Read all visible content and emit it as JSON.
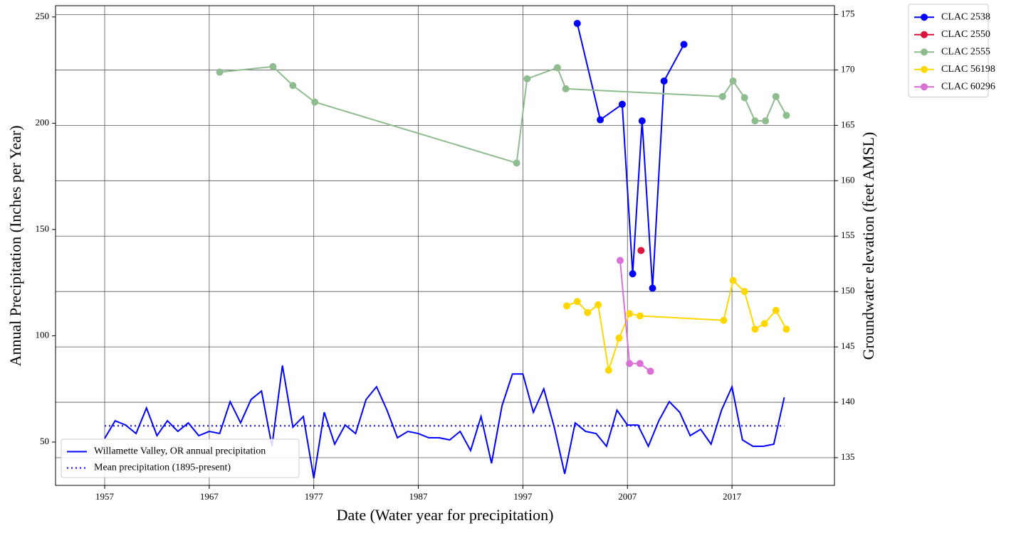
{
  "chart_data": {
    "type": "line",
    "x_label": "Date (Water year for precipitation)",
    "y_label": "Annual Precipitation (Inches per Year)",
    "y2_label": "Groundwater elevation (feet AMSL)",
    "xlim": [
      1952.3,
      2026.8
    ],
    "xticks": [
      1957,
      1967,
      1977,
      1987,
      1997,
      2007,
      2017
    ],
    "ylim": [
      29.6,
      255.3
    ],
    "yticks": [
      50,
      100,
      150,
      200,
      250
    ],
    "y2lim": [
      132.5,
      175.8
    ],
    "y2ticks": [
      135,
      140,
      145,
      150,
      155,
      160,
      165,
      170,
      175
    ],
    "grid": true,
    "legend_loc": "lower left",
    "legend2_loc": "outside upper right",
    "series": [
      {
        "name": "Willamette Valley, OR annual precipitation",
        "color": "#0000ff",
        "style": "solid",
        "axis": "y",
        "x": [
          1957,
          1958,
          1959,
          1960,
          1961,
          1962,
          1963,
          1964,
          1965,
          1966,
          1967,
          1968,
          1969,
          1970,
          1971,
          1972,
          1973,
          1974,
          1975,
          1976,
          1977,
          1978,
          1979,
          1980,
          1981,
          1982,
          1983,
          1984,
          1985,
          1986,
          1987,
          1988,
          1989,
          1990,
          1991,
          1992,
          1993,
          1994,
          1995,
          1996,
          1997,
          1998,
          1999,
          2000,
          2001,
          2002,
          2003,
          2004,
          2005,
          2006,
          2007,
          2008,
          2009,
          2010,
          2011,
          2012,
          2013,
          2014,
          2015,
          2016,
          2017,
          2018,
          2019,
          2020,
          2021,
          2022
        ],
        "values": [
          51.7,
          60,
          58,
          54,
          66,
          53,
          60,
          55,
          59,
          53,
          55,
          54,
          69,
          59,
          70,
          74,
          48,
          86,
          57,
          62,
          33,
          64,
          49,
          58,
          54,
          70,
          76,
          65,
          52,
          55,
          54,
          52,
          52,
          51,
          55,
          46,
          62,
          40,
          67,
          82,
          82,
          64,
          75,
          57,
          35,
          59,
          55,
          54,
          48,
          65,
          58,
          58,
          48,
          60,
          69,
          64,
          53,
          56,
          49,
          65,
          76,
          51,
          48,
          48,
          49,
          71
        ]
      },
      {
        "name": "Mean precipitation (1895-present)",
        "color": "#0000ff",
        "style": "dotted",
        "axis": "y",
        "x": [
          1957,
          2022
        ],
        "values": [
          57.6,
          57.6
        ]
      },
      {
        "name": "CLAC 2538",
        "color": "#0000ff",
        "style": "solid",
        "marker": "o",
        "axis": "y2",
        "x": [
          2002.2,
          2004.4,
          2006.5,
          2007.5,
          2008.4,
          2009.4,
          2010.5,
          2012.4
        ],
        "values": [
          174.2,
          165.5,
          166.9,
          151.6,
          165.4,
          150.3,
          169.0,
          172.3
        ]
      },
      {
        "name": "CLAC 2550",
        "color": "#dc143c",
        "style": "solid",
        "marker": "o",
        "axis": "y2",
        "x": [
          2008.3
        ],
        "values": [
          153.7
        ]
      },
      {
        "name": "CLAC 2555",
        "color": "#8fbc8f",
        "style": "solid",
        "marker": "o",
        "axis": "y2",
        "x": [
          1968.0,
          1973.1,
          1975.0,
          1977.1,
          1996.4,
          1997.4,
          2000.3,
          2001.1,
          2016.1,
          2017.1,
          2018.2,
          2019.2,
          2020.2,
          2021.2,
          2022.2
        ],
        "values": [
          169.8,
          170.3,
          168.6,
          167.1,
          161.6,
          169.2,
          170.2,
          168.3,
          167.6,
          169.0,
          167.5,
          165.4,
          165.4,
          167.6,
          165.9
        ]
      },
      {
        "name": "CLAC 56198",
        "color": "#ffd700",
        "style": "solid",
        "marker": "o",
        "axis": "y2",
        "x": [
          2001.2,
          2002.2,
          2003.2,
          2004.2,
          2005.2,
          2006.2,
          2007.2,
          2008.2,
          2016.2,
          2017.1,
          2018.2,
          2019.2,
          2020.1,
          2021.2,
          2022.2
        ],
        "values": [
          148.7,
          149.1,
          148.1,
          148.8,
          142.9,
          145.8,
          148.0,
          147.8,
          147.4,
          151.0,
          150.0,
          146.6,
          147.1,
          148.3,
          146.6
        ]
      },
      {
        "name": "CLAC 60296",
        "color": "#da70d6",
        "style": "solid",
        "marker": "o",
        "axis": "y2",
        "x": [
          2006.3,
          2007.2,
          2008.2,
          2009.2
        ],
        "values": [
          152.8,
          143.5,
          143.5,
          142.8
        ]
      }
    ]
  }
}
